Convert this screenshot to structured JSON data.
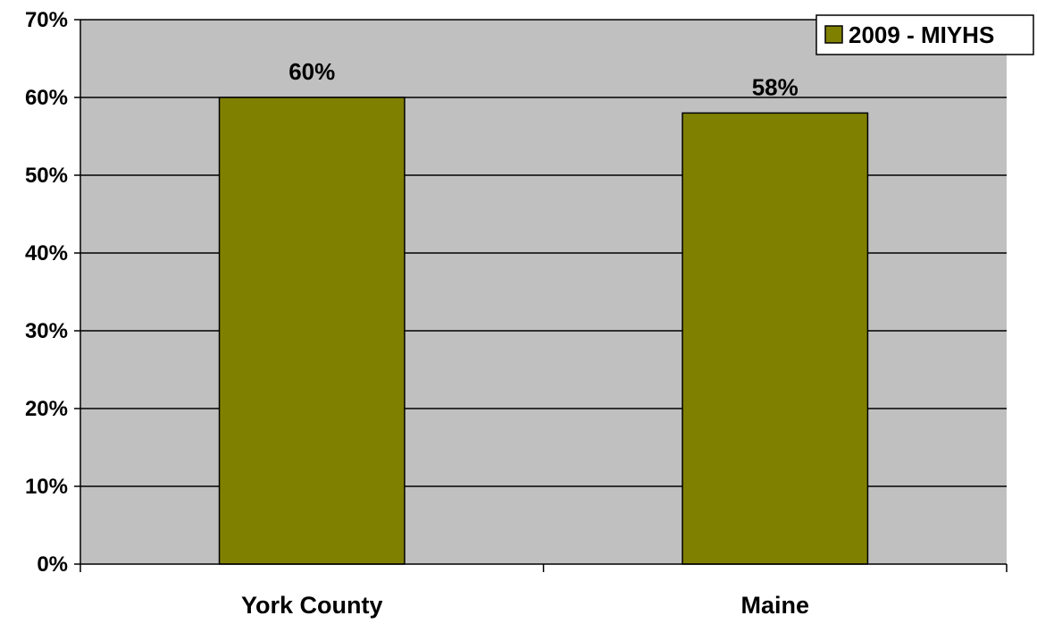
{
  "chart_data": {
    "type": "bar",
    "categories": [
      "York County",
      "Maine"
    ],
    "series": [
      {
        "name": "2009 - MIYHS",
        "values": [
          60,
          58
        ],
        "color": "#808000"
      }
    ],
    "data_labels": [
      "60%",
      "58%"
    ],
    "ylim": [
      0,
      70
    ],
    "y_ticks": [
      0,
      10,
      20,
      30,
      40,
      50,
      60,
      70
    ],
    "y_tick_labels": [
      "0%",
      "10%",
      "20%",
      "30%",
      "40%",
      "50%",
      "60%",
      "70%"
    ],
    "grid": true,
    "plot_background": "#c0c0c0",
    "legend_position": "top-right",
    "title": "",
    "xlabel": "",
    "ylabel": ""
  }
}
